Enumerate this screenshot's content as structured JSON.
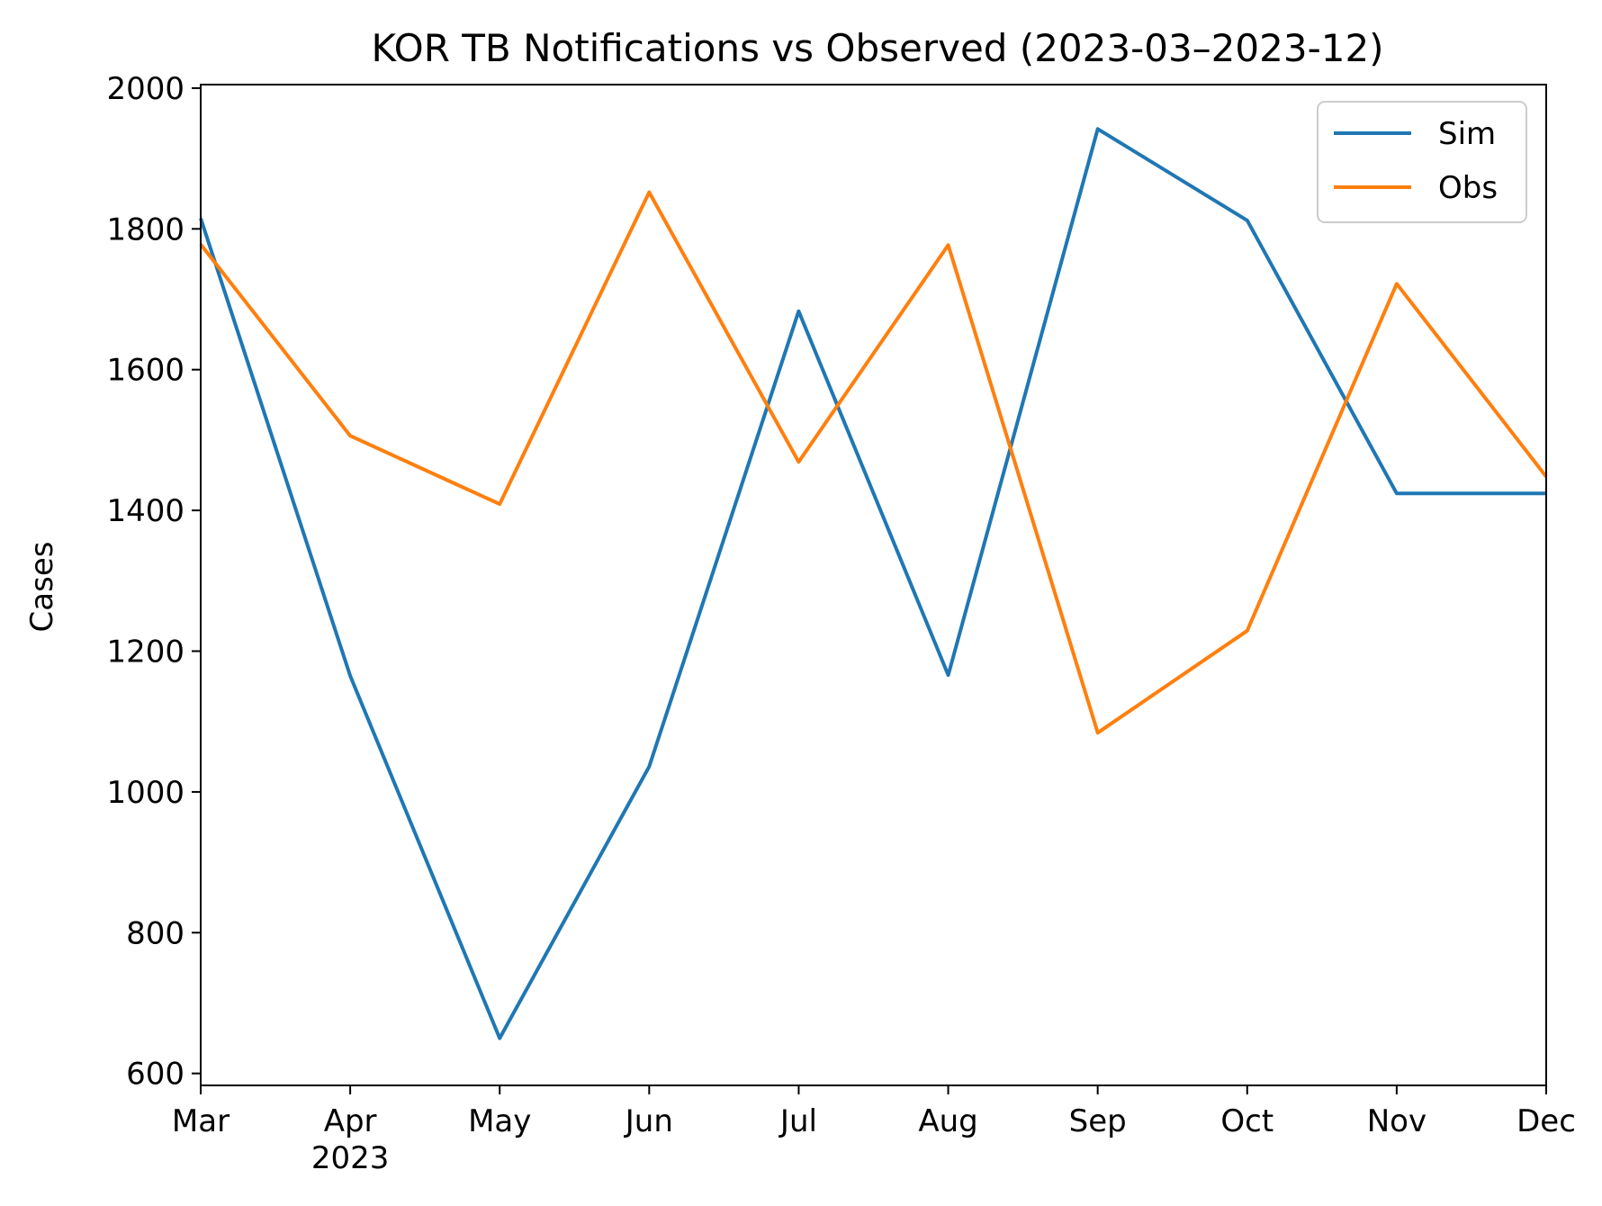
{
  "chart_data": {
    "type": "line",
    "title": "KOR TB Notifications vs Observed  (2023-03–2023-12)",
    "xlabel": "",
    "ylabel": "Cases",
    "x": [
      "2023-03",
      "2023-04",
      "2023-05",
      "2023-06",
      "2023-07",
      "2023-08",
      "2023-09",
      "2023-10",
      "2023-11",
      "2023-12"
    ],
    "x_tick_labels": [
      "Mar",
      "Apr",
      "May",
      "Jun",
      "Jul",
      "Aug",
      "Sep",
      "Oct",
      "Nov",
      "Dec"
    ],
    "x_tick_year_label": "2023",
    "y_ticks": [
      600,
      800,
      1000,
      1200,
      1400,
      1600,
      1800,
      2000
    ],
    "ylim": [
      583,
      2005
    ],
    "grid": false,
    "legend_position": "top-right",
    "series": [
      {
        "name": "Sim",
        "color": "#1f77b4",
        "values": [
          1815,
          1165,
          650,
          1036,
          1683,
          1166,
          1942,
          1812,
          1424,
          1424
        ]
      },
      {
        "name": "Obs",
        "color": "#ff7f0e",
        "values": [
          1778,
          1506,
          1409,
          1852,
          1469,
          1777,
          1084,
          1229,
          1722,
          1448
        ]
      }
    ]
  }
}
